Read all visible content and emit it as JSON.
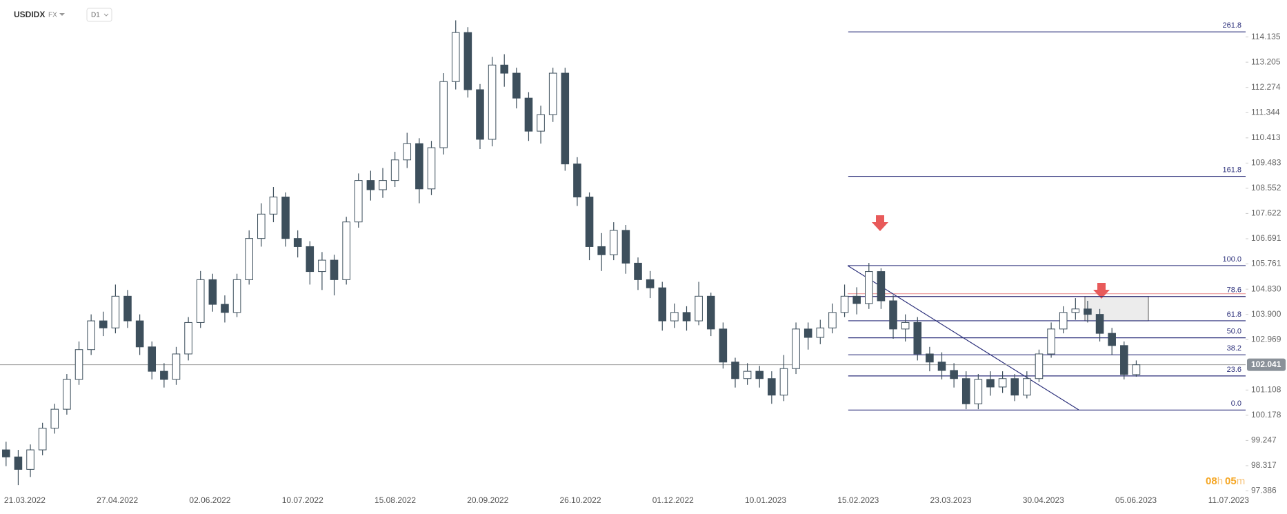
{
  "header": {
    "symbol": "USDIDX",
    "market": "FX",
    "interval": "D1"
  },
  "countdown": [
    "08",
    "h",
    "05",
    "m"
  ],
  "chart_data": {
    "type": "candlestick",
    "open": [
      98.9,
      98.64,
      98.18,
      98.9,
      99.7,
      100.4,
      101.5,
      102.6,
      103.66,
      103.4,
      104.57,
      103.66,
      102.7,
      101.8,
      101.5,
      102.44,
      103.6,
      105.18,
      104.27,
      103.97,
      105.18,
      106.7,
      107.6,
      108.23,
      106.7,
      106.4,
      105.48,
      105.9,
      105.18,
      107.31,
      108.84,
      108.5,
      108.84,
      109.6,
      110.2,
      108.53,
      110.05,
      112.49,
      114.3,
      112.19,
      110.36,
      113.1,
      112.8,
      111.88,
      110.66,
      111.27,
      112.8,
      109.45,
      108.23,
      106.4,
      106.1,
      107.0,
      105.79,
      105.18,
      104.88,
      103.66,
      103.97,
      103.66,
      104.57,
      103.36,
      102.14,
      101.53,
      101.8,
      101.53,
      100.92,
      101.9,
      103.36,
      103.05,
      103.4,
      103.97,
      104.57,
      104.3,
      105.48,
      104.4,
      103.36,
      103.6,
      102.44,
      102.14,
      101.83,
      101.53,
      100.6,
      101.5,
      101.22,
      101.53,
      100.92,
      101.53,
      102.44,
      103.36,
      103.97,
      104.1,
      103.9,
      103.2,
      102.75,
      101.68
    ],
    "high": [
      99.2,
      98.9,
      99.1,
      99.9,
      100.6,
      101.7,
      102.9,
      103.9,
      104.0,
      105.0,
      104.8,
      103.9,
      102.9,
      102.1,
      102.7,
      103.8,
      105.5,
      105.4,
      104.6,
      105.4,
      107.0,
      108.0,
      108.6,
      108.4,
      107.0,
      106.6,
      106.2,
      106.1,
      107.5,
      109.1,
      109.2,
      109.3,
      109.9,
      110.6,
      110.4,
      110.3,
      112.8,
      114.75,
      114.5,
      112.4,
      113.4,
      113.5,
      113.0,
      112.1,
      111.6,
      113.0,
      113.0,
      109.7,
      108.4,
      106.9,
      107.3,
      107.2,
      106.0,
      105.5,
      105.1,
      104.3,
      104.2,
      105.1,
      104.7,
      103.6,
      102.3,
      102.1,
      102.0,
      101.8,
      102.4,
      103.6,
      103.6,
      103.7,
      104.3,
      105.0,
      104.9,
      105.8,
      105.6,
      104.6,
      103.9,
      103.8,
      102.7,
      102.5,
      102.1,
      101.8,
      101.7,
      101.8,
      101.8,
      101.7,
      101.8,
      102.6,
      103.6,
      104.2,
      104.5,
      104.4,
      104.1,
      103.4,
      102.9,
      102.2
    ],
    "low": [
      98.3,
      97.6,
      97.9,
      98.7,
      99.5,
      100.2,
      101.3,
      102.4,
      103.1,
      103.2,
      103.4,
      102.4,
      101.5,
      101.2,
      101.3,
      102.2,
      103.4,
      104.0,
      103.6,
      103.8,
      105.0,
      106.4,
      107.3,
      106.4,
      106.0,
      105.0,
      104.8,
      104.6,
      105.0,
      107.1,
      108.1,
      108.2,
      108.6,
      109.3,
      108.0,
      108.3,
      109.8,
      112.2,
      111.9,
      110.0,
      110.1,
      112.3,
      111.5,
      110.3,
      110.2,
      111.0,
      109.2,
      107.9,
      105.9,
      105.5,
      105.9,
      105.4,
      104.8,
      104.5,
      103.3,
      103.4,
      103.3,
      103.5,
      103.1,
      101.9,
      101.2,
      101.3,
      101.2,
      100.6,
      100.7,
      101.7,
      102.6,
      102.8,
      103.2,
      103.8,
      103.9,
      104.1,
      104.1,
      103.0,
      102.9,
      102.2,
      101.8,
      101.5,
      101.2,
      100.4,
      100.4,
      100.9,
      101.0,
      100.7,
      100.8,
      101.4,
      102.3,
      103.2,
      103.7,
      103.6,
      102.9,
      102.4,
      101.5,
      101.6
    ],
    "close": [
      98.64,
      98.18,
      98.9,
      99.7,
      100.4,
      101.5,
      102.6,
      103.66,
      103.4,
      104.57,
      103.66,
      102.7,
      101.8,
      101.5,
      102.44,
      103.6,
      105.18,
      104.27,
      103.97,
      105.18,
      106.7,
      107.6,
      108.23,
      106.7,
      106.4,
      105.48,
      105.9,
      105.18,
      107.31,
      108.84,
      108.5,
      108.84,
      109.6,
      110.2,
      108.53,
      110.05,
      112.49,
      114.3,
      112.19,
      110.36,
      113.1,
      112.8,
      111.88,
      110.66,
      111.27,
      112.8,
      109.45,
      108.23,
      106.4,
      106.1,
      107.0,
      105.79,
      105.18,
      104.88,
      103.66,
      103.97,
      103.66,
      104.57,
      103.36,
      102.14,
      101.53,
      101.8,
      101.53,
      100.92,
      101.9,
      103.36,
      103.05,
      103.4,
      103.97,
      104.57,
      104.3,
      105.48,
      104.4,
      103.36,
      103.6,
      102.44,
      102.14,
      101.83,
      101.53,
      100.6,
      101.5,
      101.22,
      101.53,
      100.92,
      101.53,
      102.44,
      103.36,
      103.97,
      104.1,
      103.9,
      103.2,
      102.75,
      101.68,
      102.04
    ],
    "up_color": "#ffffff",
    "down_color": "#3d4f5c",
    "wick_color": "#3d4f5c",
    "xlim": [
      -0.5,
      102
    ],
    "xticks": [
      {
        "value": 1.54,
        "label": "21.03.2022"
      },
      {
        "value": 9.16,
        "label": "27.04.2022"
      },
      {
        "value": 16.78,
        "label": "02.06.2022"
      },
      {
        "value": 24.4,
        "label": "10.07.2022"
      },
      {
        "value": 32.02,
        "label": "15.08.2022"
      },
      {
        "value": 39.64,
        "label": "20.09.2022"
      },
      {
        "value": 47.26,
        "label": "26.10.2022"
      },
      {
        "value": 54.88,
        "label": "01.12.2022"
      },
      {
        "value": 62.5,
        "label": "10.01.2023"
      },
      {
        "value": 70.12,
        "label": "15.02.2023"
      },
      {
        "value": 77.74,
        "label": "23.03.2023"
      },
      {
        "value": 85.36,
        "label": "30.04.2023"
      },
      {
        "value": 92.98,
        "label": "05.06.2023"
      },
      {
        "value": 100.6,
        "label": "11.07.2023"
      }
    ],
    "ylim": [
      97.3,
      115.5
    ],
    "yticks": [
      97.386,
      98.317,
      99.247,
      100.178,
      101.108,
      102.969,
      {
        "value": 103.9,
        "label": "103.900"
      },
      {
        "value": 104.83,
        "label": "104.830"
      },
      105.761,
      106.691,
      107.622,
      108.552,
      109.483,
      110.413,
      111.344,
      112.274,
      113.205,
      114.135
    ],
    "last_price": 102.041,
    "fib": {
      "low": 100.37,
      "high": 105.7,
      "x_start": 69.3,
      "color": "#2b2f7a",
      "levels": [
        {
          "value": 0,
          "label": "0.0"
        },
        23.6,
        38.2,
        {
          "value": 50,
          "label": "50.0"
        },
        61.8,
        78.6,
        {
          "value": 100,
          "label": "100.0"
        },
        161.8,
        261.8
      ]
    }
  }
}
